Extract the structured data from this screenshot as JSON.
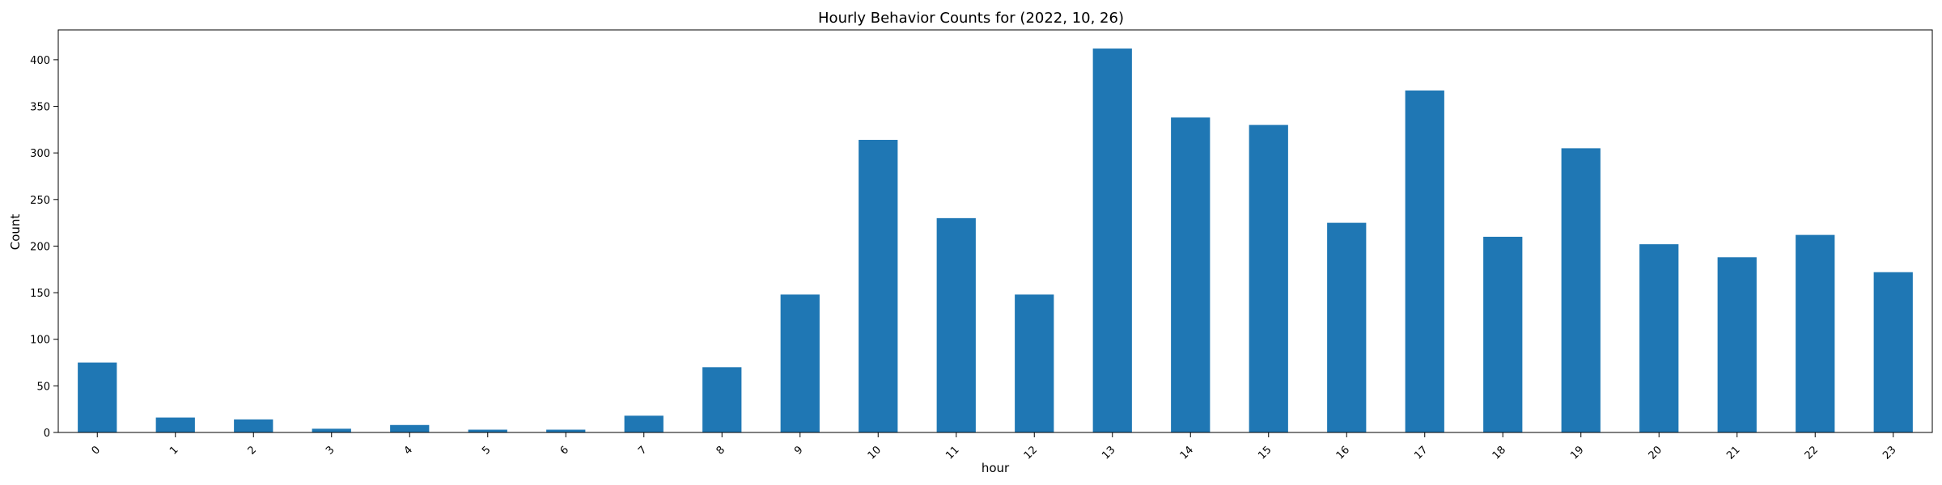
{
  "chart_data": {
    "type": "bar",
    "title": "Hourly Behavior Counts for (2022, 10, 26)",
    "xlabel": "hour",
    "ylabel": "Count",
    "categories": [
      "0",
      "1",
      "2",
      "3",
      "4",
      "5",
      "6",
      "7",
      "8",
      "9",
      "10",
      "11",
      "12",
      "13",
      "14",
      "15",
      "16",
      "17",
      "18",
      "19",
      "20",
      "21",
      "22",
      "23"
    ],
    "values": [
      75,
      16,
      14,
      4,
      8,
      3,
      3,
      18,
      70,
      148,
      314,
      230,
      148,
      412,
      338,
      330,
      225,
      367,
      210,
      305,
      202,
      188,
      212,
      172
    ],
    "ylim": [
      0,
      432
    ],
    "yticks": [
      0,
      50,
      100,
      150,
      200,
      250,
      300,
      350,
      400
    ],
    "bar_color": "#1f77b4",
    "grid": false,
    "legend": false
  }
}
